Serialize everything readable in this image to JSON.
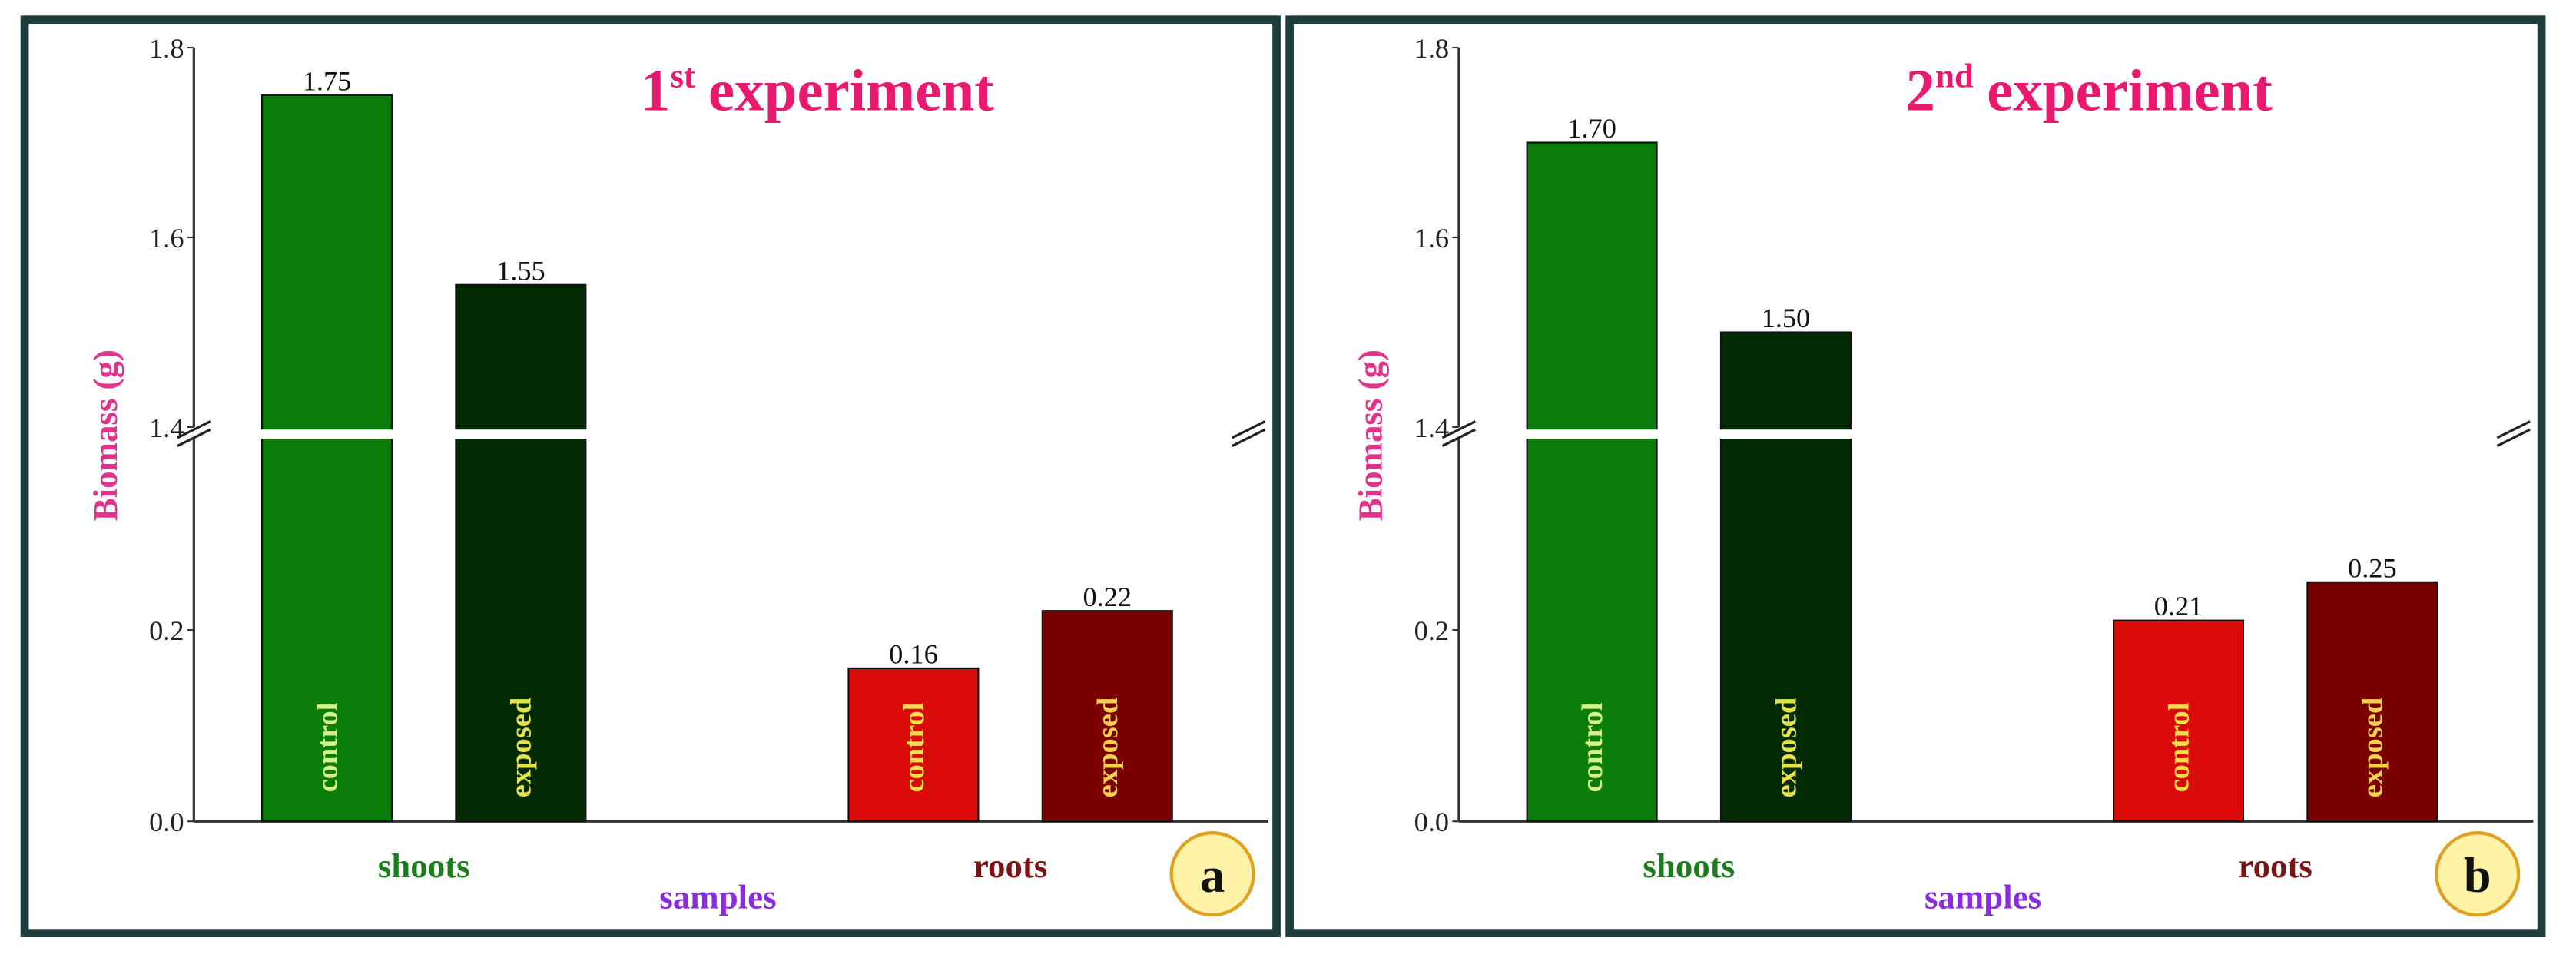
{
  "chart_data": [
    {
      "type": "bar",
      "title": {
        "number": "1",
        "suffix": "st",
        "text": "experiment"
      },
      "panel_label": "a",
      "y_label": "Biomass (g)",
      "x_label": "samples",
      "categories": [
        "shoots",
        "roots"
      ],
      "category_colors": [
        "#1d7d1d",
        "#7a1414"
      ],
      "series": [
        {
          "name": "control",
          "colors": [
            "#0a7d0a",
            "#d90b0b"
          ],
          "label_colors": [
            "#d8f08a",
            "#f2e04a"
          ],
          "values": [
            1.75,
            0.16
          ]
        },
        {
          "name": "exposed",
          "colors": [
            "#032b03",
            "#7a0000"
          ],
          "label_colors": [
            "#e6e04a",
            "#f2d24a"
          ],
          "values": [
            1.55,
            0.22
          ]
        }
      ],
      "ylim": [
        0,
        1.8
      ],
      "ybreak": [
        0.4,
        1.4
      ],
      "yticks": [
        {
          "value": 0,
          "label": "0.0"
        },
        0.2,
        1.4,
        1.6,
        1.8
      ]
    },
    {
      "type": "bar",
      "title": {
        "number": "2",
        "suffix": "nd",
        "text": "experiment"
      },
      "panel_label": "b",
      "y_label": "Biomass (g)",
      "x_label": "samples",
      "categories": [
        "shoots",
        "roots"
      ],
      "category_colors": [
        "#1d7d1d",
        "#7a1414"
      ],
      "series": [
        {
          "name": "control",
          "colors": [
            "#0a7d0a",
            "#d90b0b"
          ],
          "label_colors": [
            "#d8f08a",
            "#f2e04a"
          ],
          "values": [
            1.7,
            0.21
          ],
          "value_labels": [
            "1.70",
            "0.21"
          ]
        },
        {
          "name": "exposed",
          "colors": [
            "#032b03",
            "#7a0000"
          ],
          "label_colors": [
            "#e6e04a",
            "#f2d24a"
          ],
          "values": [
            1.5,
            0.25
          ],
          "value_labels": [
            "1.50",
            "0.25"
          ]
        }
      ],
      "ylim": [
        0,
        1.8
      ],
      "ybreak": [
        0.4,
        1.4
      ],
      "yticks": [
        {
          "value": 0,
          "label": "0.0"
        },
        0.2,
        1.4,
        1.6,
        1.8
      ]
    }
  ]
}
